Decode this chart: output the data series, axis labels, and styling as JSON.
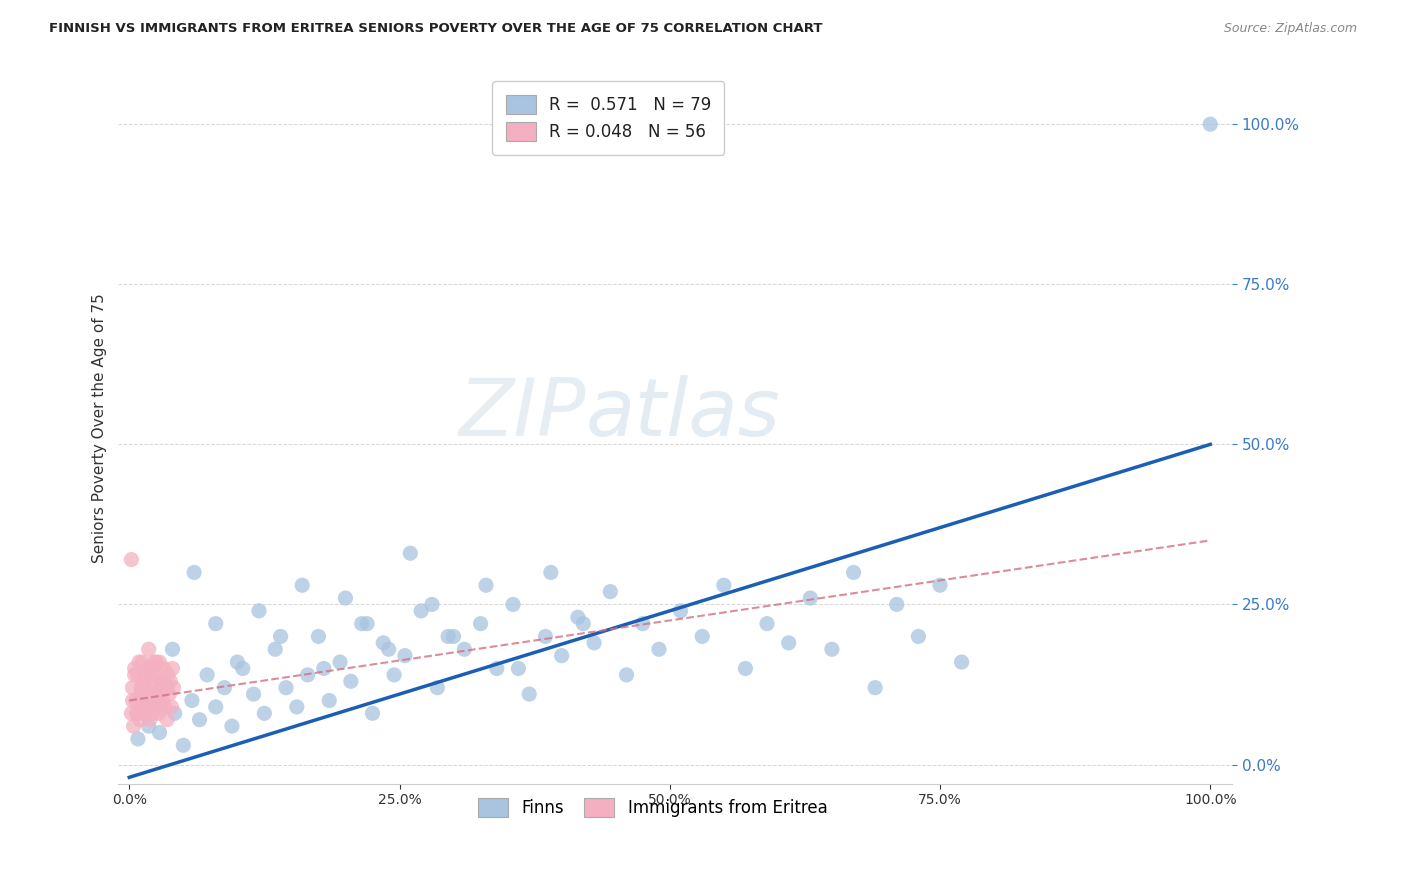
{
  "title": "FINNISH VS IMMIGRANTS FROM ERITREA SENIORS POVERTY OVER THE AGE OF 75 CORRELATION CHART",
  "source": "Source: ZipAtlas.com",
  "ylabel": "Seniors Poverty Over the Age of 75",
  "r_finns": 0.571,
  "n_finns": 79,
  "r_eritrea": 0.048,
  "n_eritrea": 56,
  "finns_color": "#a8c4e0",
  "eritrea_color": "#f4b0c0",
  "finns_line_color": "#1a5fb4",
  "eritrea_line_color": "#d47080",
  "watermark_zip": "ZIP",
  "watermark_atlas": "atlas",
  "finns_scatter_x": [
    0.008,
    0.012,
    0.018,
    0.022,
    0.028,
    0.035,
    0.042,
    0.05,
    0.058,
    0.065,
    0.072,
    0.08,
    0.088,
    0.095,
    0.105,
    0.115,
    0.125,
    0.135,
    0.145,
    0.155,
    0.165,
    0.175,
    0.185,
    0.195,
    0.205,
    0.215,
    0.225,
    0.235,
    0.245,
    0.255,
    0.27,
    0.285,
    0.295,
    0.31,
    0.325,
    0.34,
    0.355,
    0.37,
    0.385,
    0.4,
    0.415,
    0.43,
    0.445,
    0.46,
    0.475,
    0.49,
    0.51,
    0.53,
    0.55,
    0.57,
    0.59,
    0.61,
    0.63,
    0.65,
    0.67,
    0.69,
    0.71,
    0.73,
    0.75,
    0.77,
    0.04,
    0.06,
    0.08,
    0.1,
    0.12,
    0.14,
    0.16,
    0.18,
    0.2,
    0.22,
    0.24,
    0.26,
    0.28,
    0.3,
    0.33,
    0.36,
    0.39,
    0.42,
    1.0
  ],
  "finns_scatter_y": [
    0.04,
    0.08,
    0.06,
    0.1,
    0.05,
    0.12,
    0.08,
    0.03,
    0.1,
    0.07,
    0.14,
    0.09,
    0.12,
    0.06,
    0.15,
    0.11,
    0.08,
    0.18,
    0.12,
    0.09,
    0.14,
    0.2,
    0.1,
    0.16,
    0.13,
    0.22,
    0.08,
    0.19,
    0.14,
    0.17,
    0.24,
    0.12,
    0.2,
    0.18,
    0.22,
    0.15,
    0.25,
    0.11,
    0.2,
    0.17,
    0.23,
    0.19,
    0.27,
    0.14,
    0.22,
    0.18,
    0.24,
    0.2,
    0.28,
    0.15,
    0.22,
    0.19,
    0.26,
    0.18,
    0.3,
    0.12,
    0.25,
    0.2,
    0.28,
    0.16,
    0.18,
    0.3,
    0.22,
    0.16,
    0.24,
    0.2,
    0.28,
    0.15,
    0.26,
    0.22,
    0.18,
    0.33,
    0.25,
    0.2,
    0.28,
    0.15,
    0.3,
    0.22,
    1.0
  ],
  "eritrea_scatter_x": [
    0.002,
    0.003,
    0.004,
    0.005,
    0.006,
    0.007,
    0.008,
    0.009,
    0.01,
    0.011,
    0.012,
    0.013,
    0.014,
    0.015,
    0.016,
    0.017,
    0.018,
    0.019,
    0.02,
    0.021,
    0.022,
    0.023,
    0.024,
    0.025,
    0.026,
    0.027,
    0.028,
    0.029,
    0.03,
    0.031,
    0.032,
    0.033,
    0.034,
    0.035,
    0.036,
    0.037,
    0.038,
    0.039,
    0.04,
    0.041,
    0.003,
    0.005,
    0.007,
    0.009,
    0.011,
    0.013,
    0.015,
    0.017,
    0.019,
    0.021,
    0.023,
    0.025,
    0.027,
    0.029,
    0.031,
    0.002
  ],
  "eritrea_scatter_y": [
    0.08,
    0.12,
    0.06,
    0.15,
    0.1,
    0.08,
    0.14,
    0.1,
    0.07,
    0.12,
    0.16,
    0.09,
    0.12,
    0.08,
    0.14,
    0.1,
    0.18,
    0.07,
    0.15,
    0.11,
    0.13,
    0.16,
    0.09,
    0.12,
    0.14,
    0.08,
    0.16,
    0.11,
    0.13,
    0.1,
    0.15,
    0.09,
    0.12,
    0.07,
    0.14,
    0.11,
    0.13,
    0.09,
    0.15,
    0.12,
    0.1,
    0.14,
    0.08,
    0.16,
    0.11,
    0.13,
    0.09,
    0.15,
    0.1,
    0.14,
    0.08,
    0.16,
    0.11,
    0.09,
    0.13,
    0.32
  ],
  "xlim": [
    0.0,
    1.0
  ],
  "ylim": [
    0.0,
    1.0
  ],
  "xticks": [
    0.0,
    0.25,
    0.5,
    0.75,
    1.0
  ],
  "yticks": [
    0.0,
    0.25,
    0.5,
    0.75,
    1.0
  ],
  "finns_line_x0": 0.0,
  "finns_line_y0": -0.02,
  "finns_line_x1": 1.0,
  "finns_line_y1": 0.5,
  "eritrea_line_x0": 0.0,
  "eritrea_line_y0": 0.1,
  "eritrea_line_x1": 1.0,
  "eritrea_line_y1": 0.35
}
